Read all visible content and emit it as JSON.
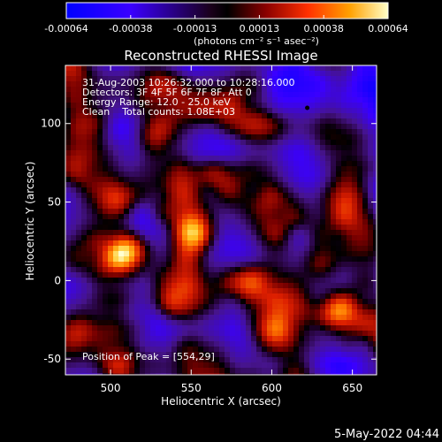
{
  "chart_data": {
    "type": "heatmap",
    "title": "Reconstructed RHESSI Image",
    "xlabel": "Heliocentric X (arcsec)",
    "ylabel": "Heliocentric Y (arcsec)",
    "xlim": [
      472,
      665
    ],
    "ylim": [
      -60,
      137
    ],
    "x_ticks": [
      500,
      550,
      600,
      650
    ],
    "y_ticks": [
      -50,
      0,
      50,
      100
    ],
    "colorbar": {
      "ticks": [
        "-0.00064",
        "-0.00038",
        "-0.00013",
        "0.00013",
        "0.00038",
        "0.00064"
      ],
      "label": "(photons cm⁻² s⁻¹ asec⁻²)",
      "range": [
        -0.00064,
        0.00064
      ]
    },
    "annotations": [
      "31-Aug-2003 10:26:32.000 to 10:28:16.000",
      "Detectors: 3F 4F 5F 6F 7F 8F, Att 0",
      "Energy Range: 12.0 - 25.0 keV",
      "Clean    Total counts: 1.08E+03"
    ],
    "peak_label": "Position of Peak = [554,29]",
    "peak_marker": [
      622,
      110
    ],
    "peak_position": [
      554,
      29
    ],
    "bright_sources": [
      {
        "x": 512,
        "y": 20,
        "intensity": 1.0
      },
      {
        "x": 552,
        "y": 30,
        "intensity": 1.0
      },
      {
        "x": 505,
        "y": 48,
        "intensity": 0.65
      },
      {
        "x": 525,
        "y": 90,
        "intensity": 0.55
      },
      {
        "x": 570,
        "y": 68,
        "intensity": 0.6
      },
      {
        "x": 585,
        "y": 0,
        "intensity": 0.55
      },
      {
        "x": 630,
        "y": 10,
        "intensity": 0.6
      },
      {
        "x": 640,
        "y": -20,
        "intensity": 0.7
      },
      {
        "x": 645,
        "y": 55,
        "intensity": 0.5
      },
      {
        "x": 600,
        "y": -35,
        "intensity": 0.6
      },
      {
        "x": 480,
        "y": -30,
        "intensity": 0.5
      },
      {
        "x": 540,
        "y": -15,
        "intensity": 0.6
      },
      {
        "x": 490,
        "y": 100,
        "intensity": 0.45
      },
      {
        "x": 560,
        "y": 110,
        "intensity": 0.45
      }
    ],
    "grid": false
  },
  "timestamp": "5-May-2022 04:44"
}
